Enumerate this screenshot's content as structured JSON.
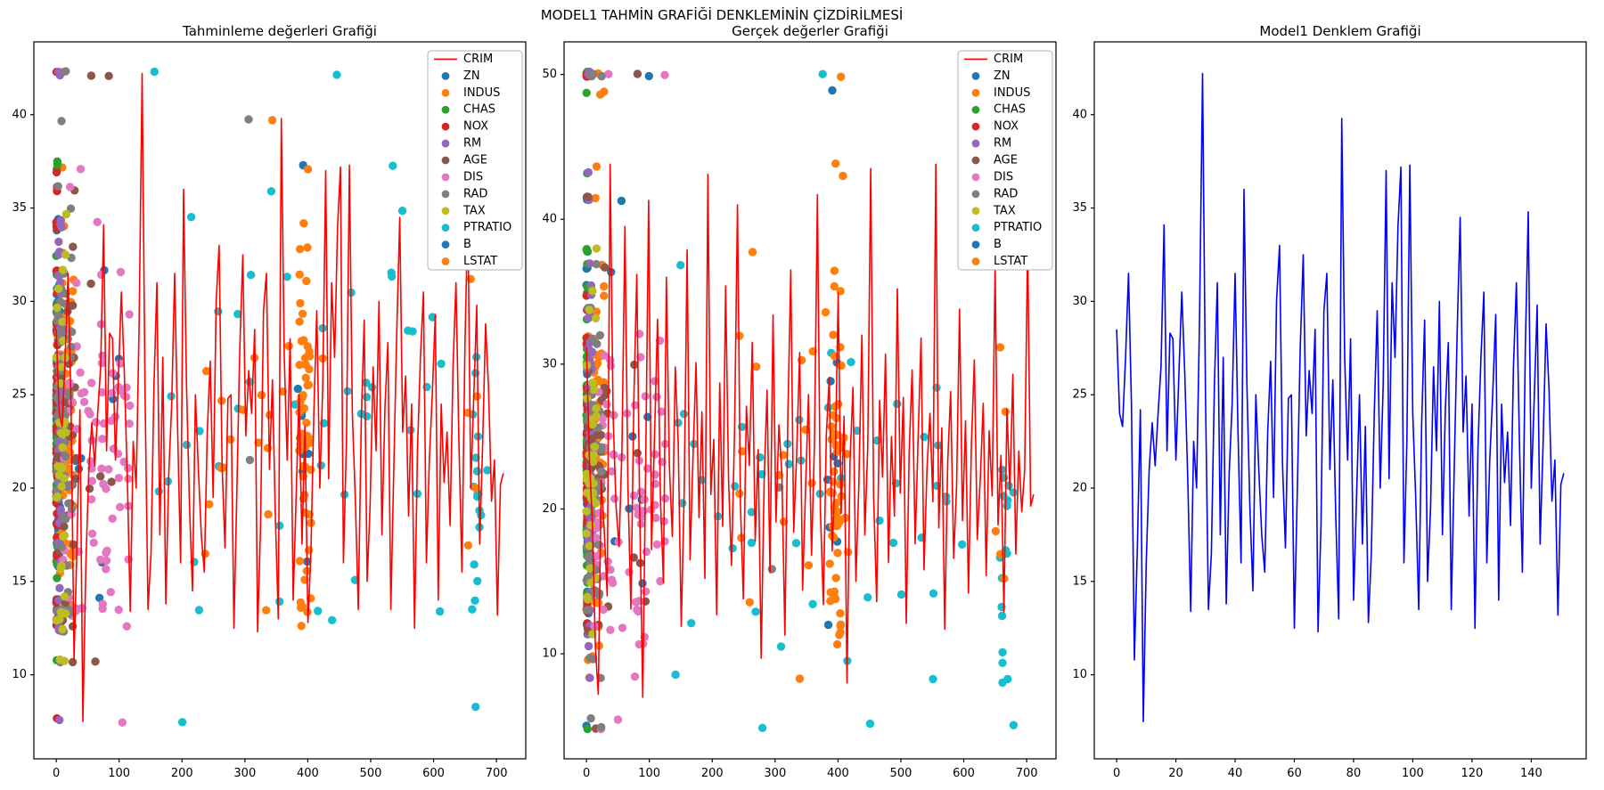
{
  "figure": {
    "title": "MODEL1 TAHMİN GRAFİĞİ DENKLEMİNİN ÇİZDİRİLMESİ",
    "background": "#ffffff"
  },
  "legend": {
    "items": [
      {
        "label": "CRIM",
        "marker": "line",
        "color": "#ff0000"
      },
      {
        "label": "ZN",
        "marker": "dot",
        "color": "#1f77b4"
      },
      {
        "label": "INDUS",
        "marker": "dot",
        "color": "#ff7f0e"
      },
      {
        "label": "CHAS",
        "marker": "dot",
        "color": "#2ca02c"
      },
      {
        "label": "NOX",
        "marker": "dot",
        "color": "#d62728"
      },
      {
        "label": "RM",
        "marker": "dot",
        "color": "#9467bd"
      },
      {
        "label": "AGE",
        "marker": "dot",
        "color": "#8c564b"
      },
      {
        "label": "DIS",
        "marker": "dot",
        "color": "#e377c2"
      },
      {
        "label": "RAD",
        "marker": "dot",
        "color": "#7f7f7f"
      },
      {
        "label": "TAX",
        "marker": "dot",
        "color": "#bcbd22"
      },
      {
        "label": "PTRATIO",
        "marker": "dot",
        "color": "#17becf"
      },
      {
        "label": "B",
        "marker": "dot",
        "color": "#1f77b4"
      },
      {
        "label": "LSTAT",
        "marker": "dot",
        "color": "#ff7f0e"
      }
    ]
  },
  "chart_data": [
    {
      "type": "scatter",
      "title": "Tahminleme değerleri Grafiği",
      "xlabel": "",
      "ylabel": "",
      "xlim": [
        -35.6,
        746.6
      ],
      "ylim": [
        5.5,
        43.9
      ],
      "xticks": [
        0,
        100,
        200,
        300,
        400,
        500,
        600,
        700
      ],
      "yticks": [
        10,
        15,
        20,
        25,
        30,
        35,
        40
      ],
      "grid": false,
      "legend": true,
      "legend_position": "upper-right",
      "scatter_y_key": "y_pred",
      "line_series": {
        "name": "CRIM",
        "color": "#ff0000",
        "x_span": [
          0,
          711
        ],
        "y_key": "y_pred"
      }
    },
    {
      "type": "scatter",
      "title": "Gerçek değerler Grafiği",
      "xlabel": "",
      "ylabel": "",
      "xlim": [
        -35.6,
        746.6
      ],
      "ylim": [
        2.75,
        52.25
      ],
      "xticks": [
        0,
        100,
        200,
        300,
        400,
        500,
        600,
        700
      ],
      "yticks": [
        10,
        20,
        30,
        40,
        50
      ],
      "grid": false,
      "legend": true,
      "legend_position": "upper-right",
      "scatter_y_key": "y_true",
      "line_series": {
        "name": "CRIM",
        "color": "#ff0000",
        "x_span": [
          0,
          711
        ],
        "y_key": "crim_line_real"
      }
    },
    {
      "type": "line",
      "title": "Model1 Denklem Grafiği",
      "xlabel": "",
      "ylabel": "",
      "xlim": [
        -7.55,
        158.55
      ],
      "ylim": [
        5.5,
        43.9
      ],
      "xticks": [
        0,
        20,
        40,
        60,
        80,
        100,
        120,
        140
      ],
      "yticks": [
        10,
        15,
        20,
        25,
        30,
        35,
        40
      ],
      "grid": false,
      "legend": false,
      "scatter_y_key": null,
      "line_series": {
        "name": "Model1",
        "color": "#0000ff",
        "x_span": [
          0,
          151
        ],
        "y_key": "y_pred"
      }
    }
  ],
  "sequences": {
    "y_pred": [
      28.5,
      24.0,
      23.3,
      27.0,
      31.5,
      24.5,
      10.8,
      17.0,
      24.2,
      7.5,
      16.0,
      21.0,
      23.5,
      21.2,
      24.0,
      26.5,
      34.1,
      22.0,
      28.3,
      28.0,
      21.5,
      26.0,
      30.5,
      26.2,
      20.5,
      13.4,
      22.5,
      20.0,
      29.0,
      42.2,
      25.0,
      13.5,
      16.5,
      25.5,
      31.0,
      17.5,
      27.0,
      13.8,
      20.8,
      24.5,
      31.5,
      23.0,
      16.0,
      36.0,
      25.5,
      19.0,
      14.5,
      25.0,
      21.0,
      17.5,
      15.5,
      23.0,
      26.8,
      19.5,
      30.0,
      33.0,
      21.3,
      16.8,
      24.8,
      25.0,
      12.5,
      19.8,
      27.5,
      32.5,
      22.8,
      26.3,
      24.0,
      28.5,
      12.3,
      18.0,
      29.5,
      31.5,
      21.0,
      25.8,
      18.5,
      13.0,
      39.8,
      27.0,
      21.5,
      28.0,
      14.0,
      19.5,
      25.0,
      17.0,
      23.3,
      12.8,
      16.5,
      24.0,
      29.5,
      20.0,
      25.5,
      37.0,
      20.5,
      31.0,
      27.0,
      34.0,
      37.2,
      16.0,
      22.5,
      37.3,
      24.0,
      19.5,
      13.5,
      23.5,
      29.0,
      15.0,
      19.0,
      26.5,
      22.0,
      30.0,
      17.5,
      24.3,
      27.8,
      13.5,
      21.0,
      28.5,
      34.5,
      23.0,
      26.0,
      18.5,
      24.5,
      12.5,
      22.0,
      27.0,
      30.5,
      16.0,
      21.5,
      25.0,
      29.3,
      14.0,
      24.5,
      20.3,
      23.0,
      18.0,
      26.5,
      31.0,
      22.5,
      15.5,
      27.5,
      34.8,
      20.0,
      24.8,
      29.8,
      17.0,
      22.3,
      28.8,
      25.3,
      19.3,
      21.5,
      13.2,
      20.2,
      20.8
    ],
    "y_true": [
      31.2,
      23.5,
      19.0,
      10.5,
      5.0,
      22.0,
      18.5,
      14.0,
      50.0,
      26.5,
      20.1,
      17.4,
      24.3,
      50.0,
      21.7,
      13.1,
      27.5,
      36.2,
      19.9,
      8.4,
      23.1,
      41.3,
      17.2,
      25.0,
      33.1,
      20.6,
      14.9,
      50.0,
      22.9,
      18.1,
      29.8,
      24.5,
      11.9,
      21.2,
      37.9,
      16.5,
      23.6,
      30.1,
      19.4,
      26.7,
      15.2,
      43.1,
      21.0,
      24.8,
      12.7,
      28.7,
      18.8,
      35.4,
      22.0,
      16.1,
      25.3,
      50.0,
      20.3,
      13.8,
      27.1,
      23.0,
      31.5,
      17.8,
      24.1,
      9.7,
      21.9,
      28.2,
      15.6,
      33.4,
      19.1,
      25.8,
      22.4,
      11.3,
      26.2,
      36.5,
      18.4,
      23.8,
      30.8,
      14.4,
      21.4,
      27.9,
      16.8,
      24.6,
      41.7,
      20.0,
      13.4,
      25.1,
      29.1,
      17.1,
      22.6,
      34.9,
      19.7,
      26.4,
      5.6,
      23.3,
      28.4,
      15.0,
      21.7,
      32.0,
      18.2,
      24.3,
      48.8,
      20.8,
      13.6,
      27.5,
      22.2,
      30.7,
      16.3,
      25.0,
      19.5,
      35.2,
      21.1,
      27.7,
      12.1,
      23.9,
      29.6,
      17.6,
      24.9,
      31.8,
      15.8,
      22.8,
      26.6,
      20.5,
      43.8,
      18.7,
      25.6,
      11.7,
      23.2,
      28.1,
      16.6,
      21.6,
      33.8,
      19.2,
      26.1,
      14.2,
      24.4,
      30.3,
      17.9,
      22.1,
      27.3,
      15.4,
      25.4,
      20.9,
      36.8,
      18.9,
      23.7,
      12.9,
      26.9,
      21.3,
      29.3,
      16.9,
      24.0,
      19.8,
      22.7,
      50.0,
      20.2,
      21.0
    ],
    "crim_line_real": [
      31.2,
      23.5,
      19.0,
      10.5,
      7.2,
      22.0,
      18.5,
      14.0,
      43.8,
      26.5,
      20.1,
      17.4,
      24.3,
      39.5,
      21.7,
      13.1,
      27.5,
      36.2,
      19.9,
      7.0,
      23.1,
      41.3,
      17.2,
      25.0,
      33.1,
      20.6,
      14.9,
      36.0,
      22.9,
      18.1,
      29.8,
      24.5,
      11.9,
      21.2,
      37.9,
      16.5,
      23.6,
      30.1,
      19.4,
      26.7,
      15.2,
      43.1,
      21.0,
      24.8,
      12.7,
      28.7,
      18.8,
      35.4,
      22.0,
      16.1,
      25.3,
      41.0,
      20.3,
      13.8,
      27.1,
      23.0,
      31.5,
      17.8,
      24.1,
      9.7,
      21.9,
      28.2,
      15.6,
      33.4,
      19.1,
      25.8,
      22.4,
      11.3,
      26.2,
      36.5,
      18.4,
      23.8,
      30.8,
      14.4,
      21.4,
      27.9,
      16.8,
      24.6,
      41.7,
      20.0,
      13.4,
      25.1,
      29.1,
      17.1,
      22.6,
      34.9,
      19.7,
      26.4,
      8.0,
      23.3,
      28.4,
      15.0,
      21.7,
      32.0,
      18.2,
      24.3,
      43.5,
      20.8,
      13.6,
      27.5,
      22.2,
      30.7,
      16.3,
      25.0,
      19.5,
      35.2,
      21.1,
      27.7,
      12.1,
      23.9,
      29.6,
      17.6,
      24.9,
      31.8,
      15.8,
      22.8,
      26.6,
      20.5,
      43.8,
      18.7,
      25.6,
      11.7,
      23.2,
      28.1,
      16.6,
      21.6,
      33.8,
      19.2,
      26.1,
      14.2,
      24.4,
      30.3,
      17.9,
      22.1,
      27.3,
      15.4,
      25.4,
      20.9,
      36.8,
      18.9,
      23.7,
      12.9,
      26.9,
      21.3,
      29.3,
      16.9,
      24.0,
      19.8,
      22.7,
      38.5,
      20.2,
      21.0
    ]
  },
  "scatter_series": [
    {
      "name": "ZN",
      "color": "#1f77b4",
      "clusters": [
        {
          "x": [
            0,
            6
          ],
          "n": 85,
          "seed": 11
        },
        {
          "x": [
            10,
            100
          ],
          "n": 10,
          "seed": 12
        }
      ]
    },
    {
      "name": "INDUS",
      "color": "#ff7f0e",
      "clusters": [
        {
          "x": [
            1,
            28
          ],
          "n": 70,
          "seed": 21
        }
      ]
    },
    {
      "name": "CHAS",
      "color": "#2ca02c",
      "clusters": [
        {
          "x": [
            0,
            2
          ],
          "n": 75,
          "seed": 31
        }
      ]
    },
    {
      "name": "NOX",
      "color": "#d62728",
      "clusters": [
        {
          "x": [
            0,
            2
          ],
          "n": 55,
          "seed": 41
        }
      ]
    },
    {
      "name": "RM",
      "color": "#9467bd",
      "clusters": [
        {
          "x": [
            3,
            9
          ],
          "n": 85,
          "seed": 51
        }
      ]
    },
    {
      "name": "AGE",
      "color": "#8c564b",
      "clusters": [
        {
          "x": [
            2,
            35
          ],
          "n": 35,
          "seed": 61
        },
        {
          "x": [
            35,
            100
          ],
          "n": 7,
          "seed": 62
        }
      ]
    },
    {
      "name": "DIS",
      "color": "#e377c2",
      "clusters": [
        {
          "x": [
            8,
            128
          ],
          "n": 85,
          "seed": 71
        }
      ]
    },
    {
      "name": "RAD",
      "color": "#7f7f7f",
      "clusters": [
        {
          "x": [
            0,
            25
          ],
          "n": 60,
          "seed": 81
        },
        {
          "x": [
            295,
            312
          ],
          "n": 2,
          "seed": 82
        }
      ]
    },
    {
      "name": "TAX",
      "color": "#bcbd22",
      "clusters": [
        {
          "x": [
            0,
            16
          ],
          "n": 40,
          "seed": 91
        }
      ]
    },
    {
      "name": "PTRATIO",
      "color": "#17becf",
      "clusters": [
        {
          "x": [
            140,
            690
          ],
          "n": 55,
          "seed": 101
        },
        {
          "x": [
            660,
            674
          ],
          "n": 14,
          "seed": 102,
          "y": [
            5.5,
            23
          ]
        }
      ]
    },
    {
      "name": "B",
      "color": "#1f77b4",
      "clusters": [
        {
          "x": [
            383,
            401
          ],
          "n": 10,
          "seed": 111
        }
      ]
    },
    {
      "name": "LSTAT",
      "color": "#ff7f0e",
      "clusters": [
        {
          "x": [
            386,
            406
          ],
          "n": 55,
          "seed": 121
        },
        {
          "x": [
            235,
            425
          ],
          "n": 22,
          "seed": 122
        },
        {
          "x": [
            650,
            672
          ],
          "n": 5,
          "seed": 123
        }
      ]
    }
  ]
}
